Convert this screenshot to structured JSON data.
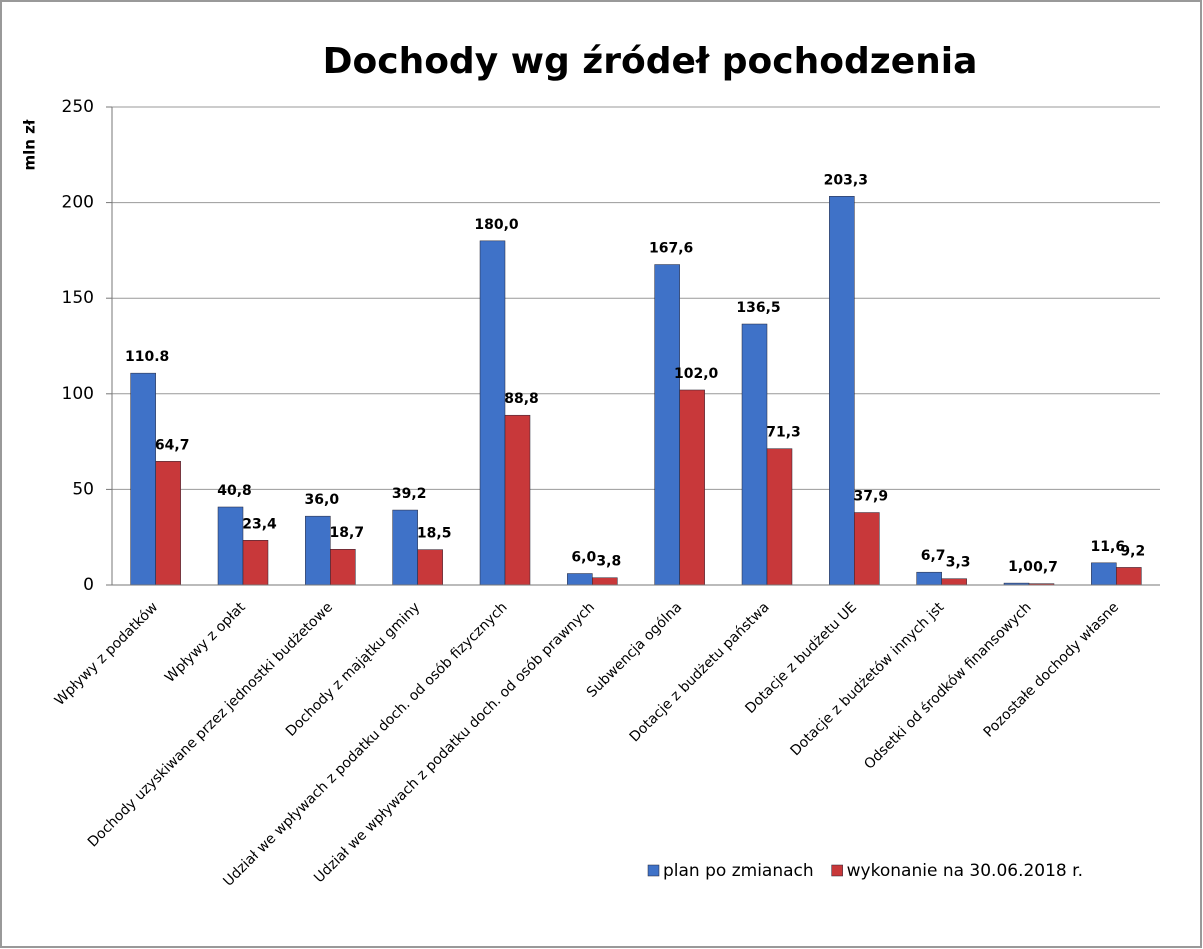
{
  "chart_data": {
    "type": "bar",
    "title": "Dochody wg źródeł pochodzenia",
    "y_label": "mln zł",
    "categories": [
      "Wpływy z podatków",
      "Wpływy z opłat",
      "Dochody uzyskiwane przez jednostki budżetowe",
      "Dochody z majątku gminy",
      "Udział we wpływach z podatku doch. od osób fizycznych",
      "Udział we wpływach z podatku doch. od osób prawnych",
      "Subwencja ogólna",
      "Dotacje z budżetu państwa",
      "Dotacje z budżetu UE",
      "Dotacje z budżetów innych jst",
      "Odsetki od środków finansowych",
      "Pozostałe dochody własne"
    ],
    "series": [
      {
        "name": "plan po zmianach",
        "color": "#3f72c8",
        "values": [
          110.8,
          40.8,
          36.0,
          39.2,
          180.0,
          6.0,
          167.6,
          136.5,
          203.3,
          6.7,
          1.0,
          11.6
        ],
        "value_labels": [
          "110.8",
          "40,8",
          "36,0",
          "39,2",
          "180,0",
          "6,0",
          "167,6",
          "136,5",
          "203,3",
          "6,7",
          "1,0",
          "11,6"
        ]
      },
      {
        "name": "wykonanie na 30.06.2018 r.",
        "color": "#c8383a",
        "values": [
          64.7,
          23.4,
          18.7,
          18.5,
          88.8,
          3.8,
          102.0,
          71.3,
          37.9,
          3.3,
          0.7,
          9.2
        ],
        "value_labels": [
          "64,7",
          "23,4",
          "18,7",
          "18,5",
          "88,8",
          "3,8",
          "102,0",
          "71,3",
          "37,9",
          "3,3",
          "0,7",
          "9,2"
        ]
      }
    ],
    "ylim": [
      0,
      250
    ],
    "yticks": [
      0,
      50,
      100,
      150,
      200,
      250
    ],
    "grid": true,
    "legend": "bottom-right"
  }
}
